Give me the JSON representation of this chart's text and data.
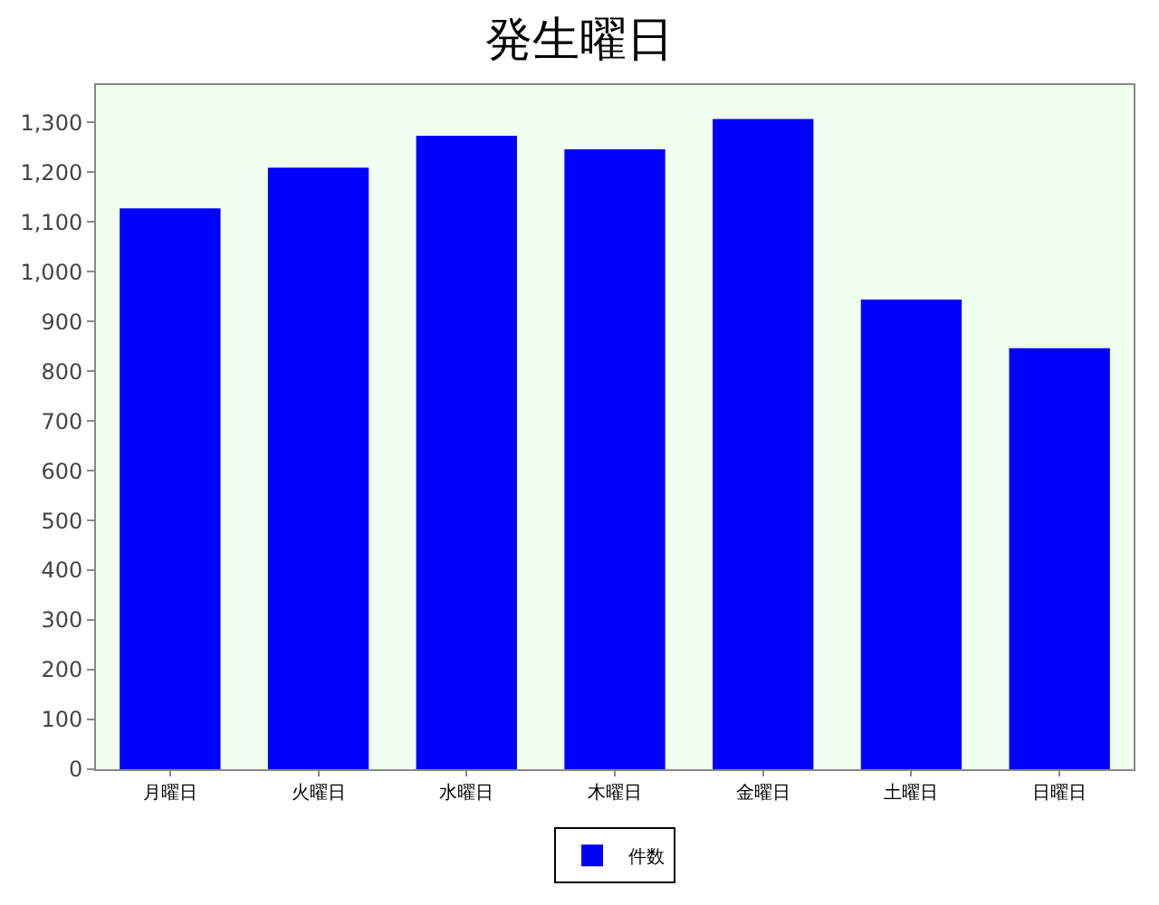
{
  "chart_data": {
    "type": "bar",
    "title": "発生曜日",
    "categories": [
      "月曜日",
      "火曜日",
      "水曜日",
      "木曜日",
      "金曜日",
      "土曜日",
      "日曜日"
    ],
    "series": [
      {
        "name": "件数",
        "color": "#0000ff",
        "values": [
          1127,
          1209,
          1273,
          1246,
          1307,
          944,
          846
        ]
      }
    ],
    "ylim": [
      0,
      1375
    ],
    "yticks": [
      0,
      100,
      200,
      300,
      400,
      500,
      600,
      700,
      800,
      900,
      {
        "value": 1000,
        "label": "1,000"
      },
      {
        "value": 1100,
        "label": "1,100"
      },
      {
        "value": 1200,
        "label": "1,200"
      },
      {
        "value": 1300,
        "label": "1,300"
      }
    ],
    "grid": false,
    "legend": "bottom"
  }
}
